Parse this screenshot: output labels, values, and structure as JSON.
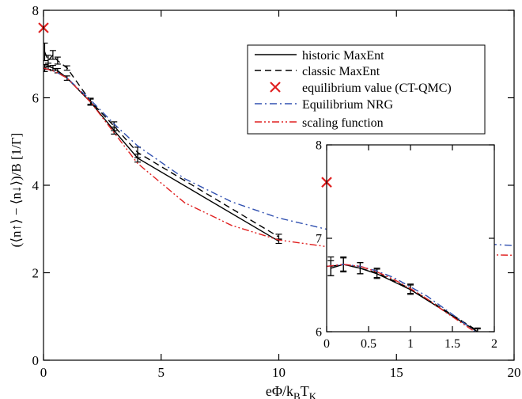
{
  "chart_data": [
    {
      "id": "main",
      "type": "line",
      "xlabel": "eΦ/k",
      "xlabel_sub1": "B",
      "xlabel_mid": "T",
      "xlabel_sub2": "K",
      "ylabel": "(⟨n↑⟩ − ⟨n↓⟩)/B   [1/Γ]",
      "xlim": [
        0,
        20
      ],
      "ylim": [
        0,
        8
      ],
      "xticks": [
        0,
        5,
        10,
        15,
        20
      ],
      "yticks": [
        0,
        2,
        4,
        6,
        8
      ],
      "legend_position": "top-right",
      "series": [
        {
          "name": "historic MaxEnt",
          "style": "solid",
          "color": "#000000",
          "x": [
            0.05,
            0.2,
            0.4,
            0.6,
            1.0,
            2.0,
            3.0,
            4.0,
            10.0
          ],
          "y": [
            6.68,
            6.72,
            6.68,
            6.62,
            6.45,
            5.9,
            5.25,
            4.62,
            2.72
          ],
          "err": [
            0.08,
            0.07,
            0.06,
            0.05,
            0.05,
            0.07,
            0.08,
            0.09,
            0.05
          ]
        },
        {
          "name": "classic MaxEnt",
          "style": "dashed",
          "color": "#000000",
          "x": [
            0.05,
            0.2,
            0.4,
            0.6,
            1.0,
            2.0,
            3.0,
            4.0,
            10.0
          ],
          "y": [
            7.05,
            6.85,
            6.98,
            6.85,
            6.68,
            5.92,
            5.35,
            4.75,
            2.82
          ],
          "err": [
            0.2,
            0.12,
            0.1,
            0.08,
            0.05,
            0.07,
            0.1,
            0.12,
            0.06
          ]
        },
        {
          "name": "equilibrium value (CT-QMC)",
          "style": "marker",
          "color": "#e02020",
          "x": [
            0.0
          ],
          "y": [
            7.6
          ]
        },
        {
          "name": "Equilibrium NRG",
          "style": "dashdot",
          "color": "#3050b0",
          "x": [
            0,
            0.5,
            1,
            2,
            3,
            4,
            6,
            8,
            10,
            12,
            14,
            16,
            18,
            20
          ],
          "y": [
            6.68,
            6.6,
            6.45,
            5.95,
            5.4,
            4.9,
            4.15,
            3.62,
            3.25,
            3.0,
            2.85,
            2.75,
            2.68,
            2.62
          ]
        },
        {
          "name": "scaling function",
          "style": "dashdotdot",
          "color": "#e02020",
          "x": [
            0,
            0.5,
            1,
            2,
            3,
            4,
            6,
            8,
            10,
            12,
            14,
            16,
            18,
            20
          ],
          "y": [
            6.68,
            6.6,
            6.45,
            5.9,
            5.2,
            4.5,
            3.6,
            3.08,
            2.75,
            2.6,
            2.5,
            2.45,
            2.42,
            2.4
          ]
        }
      ]
    },
    {
      "id": "inset",
      "type": "line",
      "xlim": [
        0,
        2
      ],
      "ylim": [
        6,
        8
      ],
      "xticks": [
        0,
        0.5,
        1,
        1.5,
        2
      ],
      "xtick_labels": [
        "0",
        "0.5",
        "1",
        "1.5",
        "2"
      ],
      "yticks": [
        6,
        7,
        8
      ],
      "series": [
        {
          "name": "historic MaxEnt",
          "style": "solid",
          "color": "#000000",
          "x": [
            0.05,
            0.2,
            0.4,
            0.6,
            1.0,
            1.8
          ],
          "y": [
            6.68,
            6.72,
            6.68,
            6.62,
            6.45,
            6.0
          ],
          "err": [
            0.08,
            0.07,
            0.06,
            0.05,
            0.05,
            0.03
          ]
        },
        {
          "name": "classic MaxEnt",
          "style": "dashed",
          "color": "#000000",
          "x": [
            0.05,
            0.2,
            0.4,
            0.6,
            1.0,
            1.8
          ],
          "y": [
            6.7,
            6.72,
            6.68,
            6.63,
            6.46,
            6.01
          ],
          "err": [
            0.1,
            0.08,
            0.06,
            0.05,
            0.05,
            0.03
          ]
        },
        {
          "name": "equilibrium value (CT-QMC)",
          "style": "marker",
          "color": "#e02020",
          "x": [
            0.0
          ],
          "y": [
            7.6
          ]
        },
        {
          "name": "Equilibrium NRG",
          "style": "dashdot",
          "color": "#3050b0",
          "x": [
            0,
            0.2,
            0.4,
            0.6,
            0.8,
            1.0,
            1.2,
            1.4,
            1.6,
            1.8
          ],
          "y": [
            6.7,
            6.72,
            6.7,
            6.65,
            6.58,
            6.48,
            6.38,
            6.25,
            6.12,
            5.98
          ]
        },
        {
          "name": "scaling function",
          "style": "dashdotdot",
          "color": "#e02020",
          "x": [
            0,
            0.2,
            0.4,
            0.6,
            0.8,
            1.0,
            1.2,
            1.4,
            1.6,
            1.8
          ],
          "y": [
            6.7,
            6.72,
            6.7,
            6.64,
            6.56,
            6.46,
            6.35,
            6.22,
            6.1,
            5.98
          ]
        }
      ]
    }
  ]
}
